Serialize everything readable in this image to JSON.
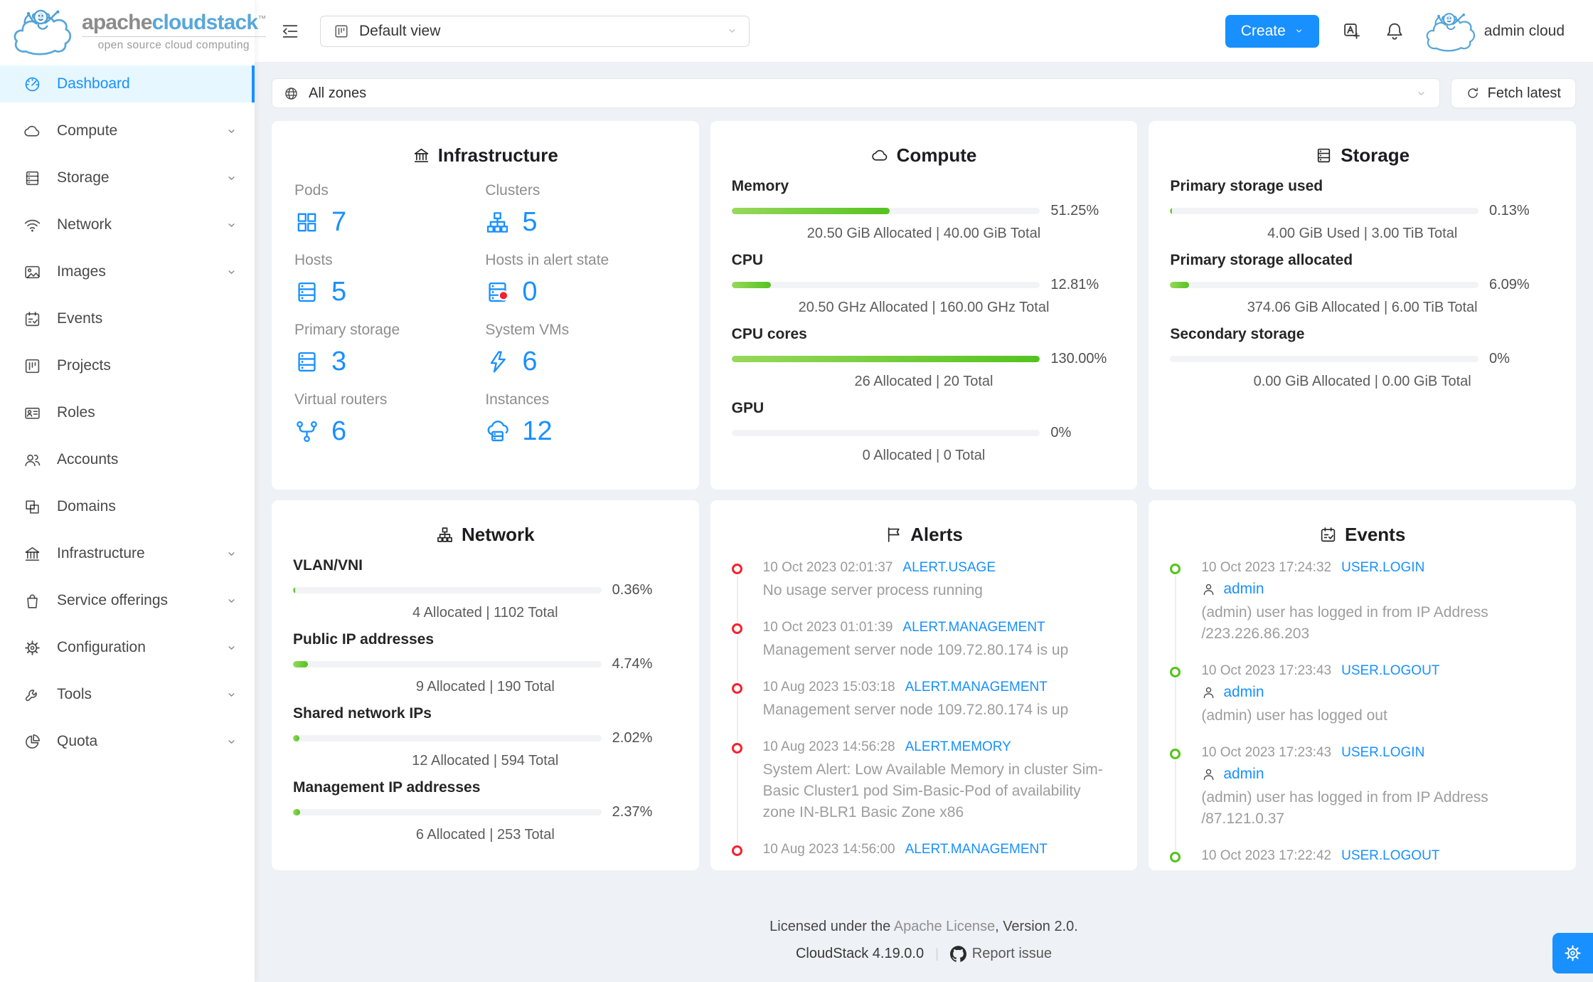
{
  "brand": {
    "name_primary": "apache",
    "name_secondary": "cloudstack",
    "trademark": "™",
    "tagline": "open source cloud computing"
  },
  "header": {
    "view_selector_value": "Default view",
    "create_label": "Create",
    "user_name": "admin cloud"
  },
  "zone_bar": {
    "zone_selector_value": "All zones",
    "fetch_latest_label": "Fetch latest"
  },
  "sidebar": {
    "items": [
      {
        "name": "dashboard",
        "label": "Dashboard",
        "icon": "dashboard",
        "selected": true,
        "chevron": false
      },
      {
        "name": "compute",
        "label": "Compute",
        "icon": "cloud",
        "chevron": true
      },
      {
        "name": "storage",
        "label": "Storage",
        "icon": "database",
        "chevron": true
      },
      {
        "name": "network",
        "label": "Network",
        "icon": "wifi",
        "chevron": true
      },
      {
        "name": "images",
        "label": "Images",
        "icon": "picture",
        "chevron": true
      },
      {
        "name": "events",
        "label": "Events",
        "icon": "calendar-check",
        "chevron": false
      },
      {
        "name": "projects",
        "label": "Projects",
        "icon": "project",
        "chevron": false
      },
      {
        "name": "roles",
        "label": "Roles",
        "icon": "idcard",
        "chevron": false
      },
      {
        "name": "accounts",
        "label": "Accounts",
        "icon": "team",
        "chevron": false
      },
      {
        "name": "domains",
        "label": "Domains",
        "icon": "block",
        "chevron": false
      },
      {
        "name": "infrastructure",
        "label": "Infrastructure",
        "icon": "bank",
        "chevron": true
      },
      {
        "name": "service-offerings",
        "label": "Service offerings",
        "icon": "shopping",
        "chevron": true
      },
      {
        "name": "configuration",
        "label": "Configuration",
        "icon": "setting",
        "chevron": true
      },
      {
        "name": "tools",
        "label": "Tools",
        "icon": "tool",
        "chevron": true
      },
      {
        "name": "quota",
        "label": "Quota",
        "icon": "pie-chart",
        "chevron": true
      }
    ]
  },
  "cards": {
    "infrastructure": {
      "title": "Infrastructure",
      "icon": "bank",
      "stats": [
        {
          "label": "Pods",
          "value": "7",
          "icon": "appstore"
        },
        {
          "label": "Clusters",
          "value": "5",
          "icon": "cluster"
        },
        {
          "label": "Hosts",
          "value": "5",
          "icon": "database"
        },
        {
          "label": "Hosts in alert state",
          "value": "0",
          "icon": "database-alert"
        },
        {
          "label": "Primary storage",
          "value": "3",
          "icon": "database"
        },
        {
          "label": "System VMs",
          "value": "6",
          "icon": "thunderbolt"
        },
        {
          "label": "Virtual routers",
          "value": "6",
          "icon": "fork"
        },
        {
          "label": "Instances",
          "value": "12",
          "icon": "cloud-server"
        }
      ]
    },
    "compute": {
      "title": "Compute",
      "icon": "cloud",
      "meters": [
        {
          "label": "Memory",
          "percent": 51.25,
          "percent_text": "51.25%",
          "caption": "20.50 GiB Allocated | 40.00 GiB Total"
        },
        {
          "label": "CPU",
          "percent": 12.81,
          "percent_text": "12.81%",
          "caption": "20.50 GHz Allocated | 160.00 GHz Total"
        },
        {
          "label": "CPU cores",
          "percent": 130,
          "percent_text": "130.00%",
          "caption": "26 Allocated | 20 Total"
        },
        {
          "label": "GPU",
          "percent": 0,
          "percent_text": "0%",
          "caption": "0 Allocated | 0 Total"
        }
      ]
    },
    "storage": {
      "title": "Storage",
      "icon": "database",
      "meters": [
        {
          "label": "Primary storage used",
          "percent": 0.13,
          "percent_text": "0.13%",
          "caption": "4.00 GiB Used | 3.00 TiB Total"
        },
        {
          "label": "Primary storage allocated",
          "percent": 6.09,
          "percent_text": "6.09%",
          "caption": "374.06 GiB Allocated | 6.00 TiB Total"
        },
        {
          "label": "Secondary storage",
          "percent": 0,
          "percent_text": "0%",
          "caption": "0.00 GiB Allocated | 0.00 GiB Total"
        }
      ]
    },
    "network": {
      "title": "Network",
      "icon": "cluster",
      "meters": [
        {
          "label": "VLAN/VNI",
          "percent": 0.36,
          "percent_text": "0.36%",
          "caption": "4 Allocated | 1102 Total"
        },
        {
          "label": "Public IP addresses",
          "percent": 4.74,
          "percent_text": "4.74%",
          "caption": "9 Allocated | 190 Total"
        },
        {
          "label": "Shared network IPs",
          "percent": 2.02,
          "percent_text": "2.02%",
          "caption": "12 Allocated | 594 Total"
        },
        {
          "label": "Management IP addresses",
          "percent": 2.37,
          "percent_text": "2.37%",
          "caption": "6 Allocated | 253 Total"
        }
      ]
    },
    "alerts": {
      "title": "Alerts",
      "icon": "flag",
      "items": [
        {
          "time": "10 Oct 2023 02:01:37",
          "type": "ALERT.USAGE",
          "description": "No usage server process running"
        },
        {
          "time": "10 Oct 2023 01:01:39",
          "type": "ALERT.MANAGEMENT",
          "description": "Management server node 109.72.80.174 is up"
        },
        {
          "time": "10 Aug 2023 15:03:18",
          "type": "ALERT.MANAGEMENT",
          "description": "Management server node 109.72.80.174 is up"
        },
        {
          "time": "10 Aug 2023 14:56:28",
          "type": "ALERT.MEMORY",
          "description": "System Alert: Low Available Memory in cluster Sim-Basic Cluster1 pod Sim-Basic-Pod of availability zone IN-BLR1 Basic Zone x86"
        },
        {
          "time": "10 Aug 2023 14:56:00",
          "type": "ALERT.MANAGEMENT",
          "description": ""
        }
      ]
    },
    "events": {
      "title": "Events",
      "icon": "calendar-check",
      "items": [
        {
          "time": "10 Oct 2023 17:24:32",
          "type": "USER.LOGIN",
          "user": "admin",
          "description": "(admin) user has logged in from IP Address /223.226.86.203"
        },
        {
          "time": "10 Oct 2023 17:23:43",
          "type": "USER.LOGOUT",
          "user": "admin",
          "description": "(admin) user has logged out"
        },
        {
          "time": "10 Oct 2023 17:23:43",
          "type": "USER.LOGIN",
          "user": "admin",
          "description": "(admin) user has logged in from IP Address /87.121.0.37"
        },
        {
          "time": "10 Oct 2023 17:22:42",
          "type": "USER.LOGOUT",
          "user": "",
          "description": ""
        }
      ]
    }
  },
  "footer": {
    "license_prefix": "Licensed under the ",
    "license_link": "Apache License",
    "license_suffix": ", Version 2.0.",
    "version": "CloudStack 4.19.0.0",
    "report_issue": "Report issue"
  },
  "colors": {
    "primary": "#1890ff",
    "selected_bg": "#e6f7ff",
    "progress_gradient_start": "#98d85b",
    "progress_gradient_end": "#54c31f",
    "alert_dot": "#f5222d",
    "event_dot": "#52c41a",
    "background": "#eef1f5"
  }
}
